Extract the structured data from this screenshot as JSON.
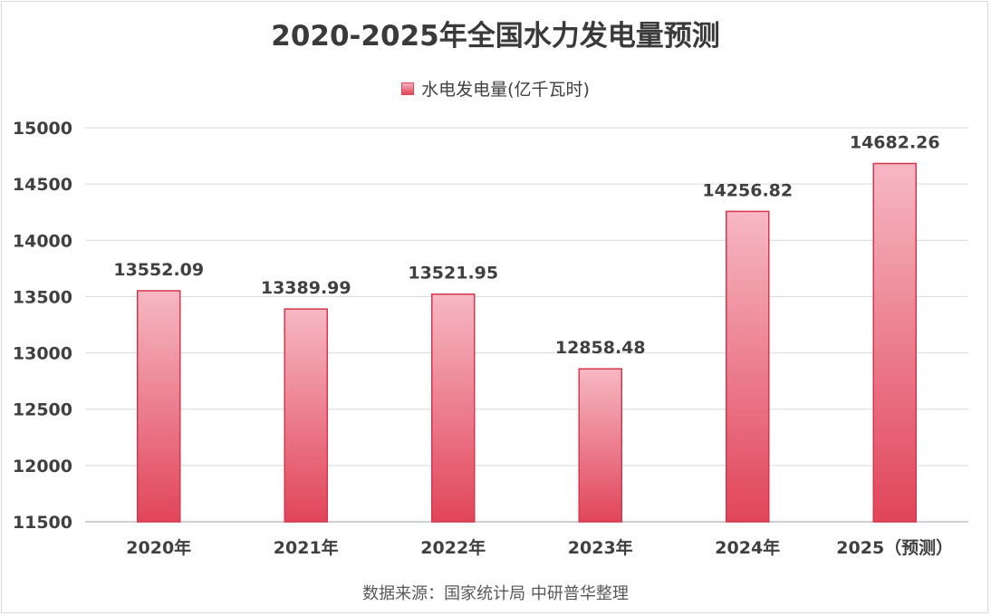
{
  "chart_data": {
    "type": "bar",
    "title": "2020-2025年全国水力发电量预测",
    "categories": [
      "2020年",
      "2021年",
      "2022年",
      "2023年",
      "2024年",
      "2025（预测）"
    ],
    "series": [
      {
        "name": "水电发电量(亿千瓦时)",
        "values": [
          13552.09,
          13389.99,
          13521.95,
          12858.48,
          14256.82,
          14682.26
        ]
      }
    ],
    "data_labels": [
      "13552.09",
      "13389.99",
      "13521.95",
      "12858.48",
      "14256.82",
      "14682.26"
    ],
    "ylim": [
      11500,
      15000
    ],
    "yticks": [
      11500,
      12000,
      12500,
      13000,
      13500,
      14000,
      14500,
      15000
    ],
    "grid": true,
    "legend_position": "top-center",
    "xlabel": "",
    "ylabel": ""
  },
  "source_note": "数据来源：国家统计局 中研普华整理",
  "colors": {
    "bar_top": "#f6b8c3",
    "bar_bottom": "#e1455a",
    "bar_border": "#d7374e",
    "grid": "#d9d9d9",
    "text": "#404040"
  }
}
